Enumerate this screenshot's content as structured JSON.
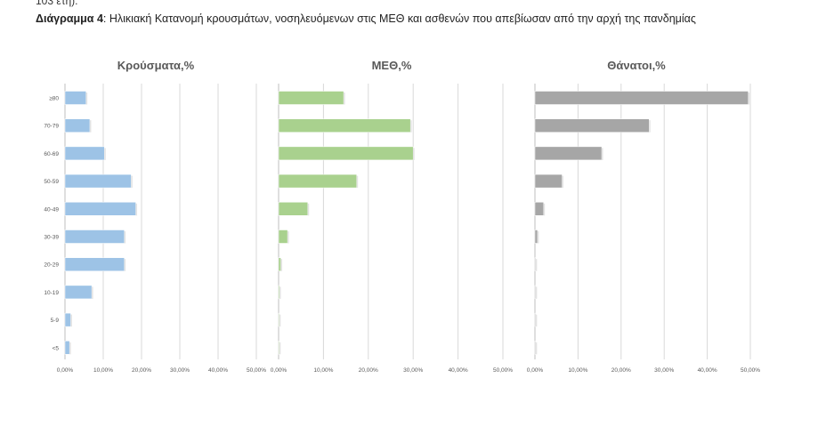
{
  "header": {
    "top_fragment": "103 έτη).",
    "caption_label": "Διάγραμμα 4",
    "caption_text": ": Ηλικιακή Κατανομή κρουσμάτων, νοσηλευόμενων στις ΜΕΘ και ασθενών που απεβίωσαν από την αρχή της πανδημίας"
  },
  "chart_data": [
    {
      "type": "bar",
      "orientation": "horizontal",
      "title": "Κρούσματα,%",
      "categories": [
        "≥80",
        "70-79",
        "60-69",
        "50-59",
        "40-49",
        "30-39",
        "20-29",
        "10-19",
        "5-9",
        "<5"
      ],
      "values": [
        5.5,
        6.5,
        10.3,
        17.3,
        18.5,
        15.5,
        15.5,
        7.0,
        1.5,
        1.2
      ],
      "xlim": [
        0,
        50
      ],
      "xticks": [
        "0,00%",
        "10,00%",
        "20,00%",
        "30,00%",
        "40,00%",
        "50,00%"
      ],
      "color": "#9dc3e6",
      "grid": true
    },
    {
      "type": "bar",
      "orientation": "horizontal",
      "title": "ΜΕΘ,%",
      "categories": [
        "≥80",
        "70-79",
        "60-69",
        "50-59",
        "40-49",
        "30-39",
        "20-29",
        "10-19",
        "5-9",
        "<5"
      ],
      "values": [
        14.5,
        29.4,
        30.0,
        17.4,
        6.5,
        2.0,
        0.5,
        0.2,
        0.1,
        0.1
      ],
      "xlim": [
        0,
        50
      ],
      "xticks": [
        "0,00%",
        "10,00%",
        "20,00%",
        "30,00%",
        "40,00%",
        "50,00%"
      ],
      "color": "#a9d18e",
      "grid": true
    },
    {
      "type": "bar",
      "orientation": "horizontal",
      "title": "Θάνατοι,%",
      "categories": [
        "≥80",
        "70-79",
        "60-69",
        "50-59",
        "40-49",
        "30-39",
        "20-29",
        "10-19",
        "5-9",
        "<5"
      ],
      "values": [
        49.5,
        26.5,
        15.5,
        6.3,
        2.0,
        0.6,
        0.1,
        0.05,
        0.05,
        0.05
      ],
      "xlim": [
        0,
        50
      ],
      "xticks": [
        "0,00%",
        "10,00%",
        "20,00%",
        "30,00%",
        "40,00%",
        "50,00%"
      ],
      "color": "#a6a6a6",
      "grid": true
    }
  ]
}
